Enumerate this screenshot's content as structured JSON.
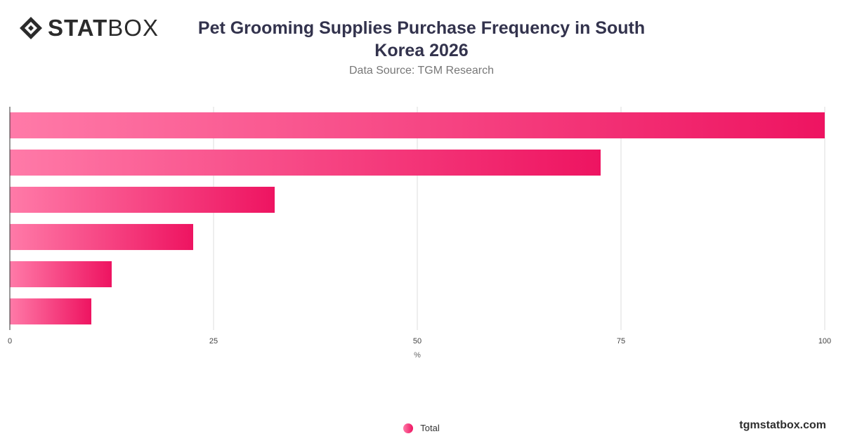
{
  "brand": {
    "name_bold": "STAT",
    "name_regular": "BOX",
    "icon": "statbox-diamond-icon"
  },
  "header": {
    "title": "Pet Grooming Supplies Purchase Frequency in South Korea 2026",
    "source": "Data Source: TGM Research"
  },
  "footer": {
    "site": "tgmstatbox.com"
  },
  "colors": {
    "bar_start": "#ff7aa8",
    "bar_end": "#ee1461",
    "grid": "#dcdcdc",
    "axis": "#333333"
  },
  "chart_data": {
    "type": "bar",
    "orientation": "horizontal",
    "categories": [
      "",
      "",
      "",
      "",
      "",
      ""
    ],
    "series": [
      {
        "name": "Total",
        "values": [
          100,
          72.5,
          32.5,
          22.5,
          12.5,
          10
        ]
      }
    ],
    "xlim": [
      0,
      100
    ],
    "xticks": [
      0,
      25,
      50,
      75,
      100
    ],
    "xlabel": "%",
    "grid": true,
    "legend": "bottom-center"
  }
}
